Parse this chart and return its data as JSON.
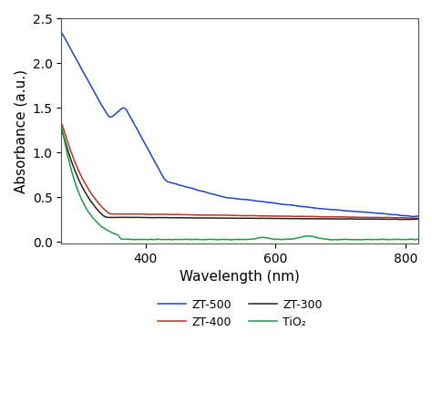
{
  "title": "",
  "xlabel": "Wavelength (nm)",
  "ylabel": "Absorbance (a.u.)",
  "xlim": [
    270,
    820
  ],
  "ylim": [
    -0.02,
    2.5
  ],
  "xticks": [
    400,
    600,
    800
  ],
  "yticks": [
    0,
    0.5,
    1.0,
    1.5,
    2.0,
    2.5
  ],
  "background_color": "#ffffff",
  "series": [
    {
      "label": "ZT-500",
      "color": "#2244cc",
      "linewidth": 1.1
    },
    {
      "label": "ZT-400",
      "color": "#bb3322",
      "linewidth": 1.1
    },
    {
      "label": "ZT-300",
      "color": "#222222",
      "linewidth": 1.1
    },
    {
      "label": "TiO₂",
      "color": "#229944",
      "linewidth": 1.1
    }
  ],
  "legend_ncol": 2,
  "legend_fontsize": 9,
  "axis_fontsize": 11,
  "tick_fontsize": 10
}
